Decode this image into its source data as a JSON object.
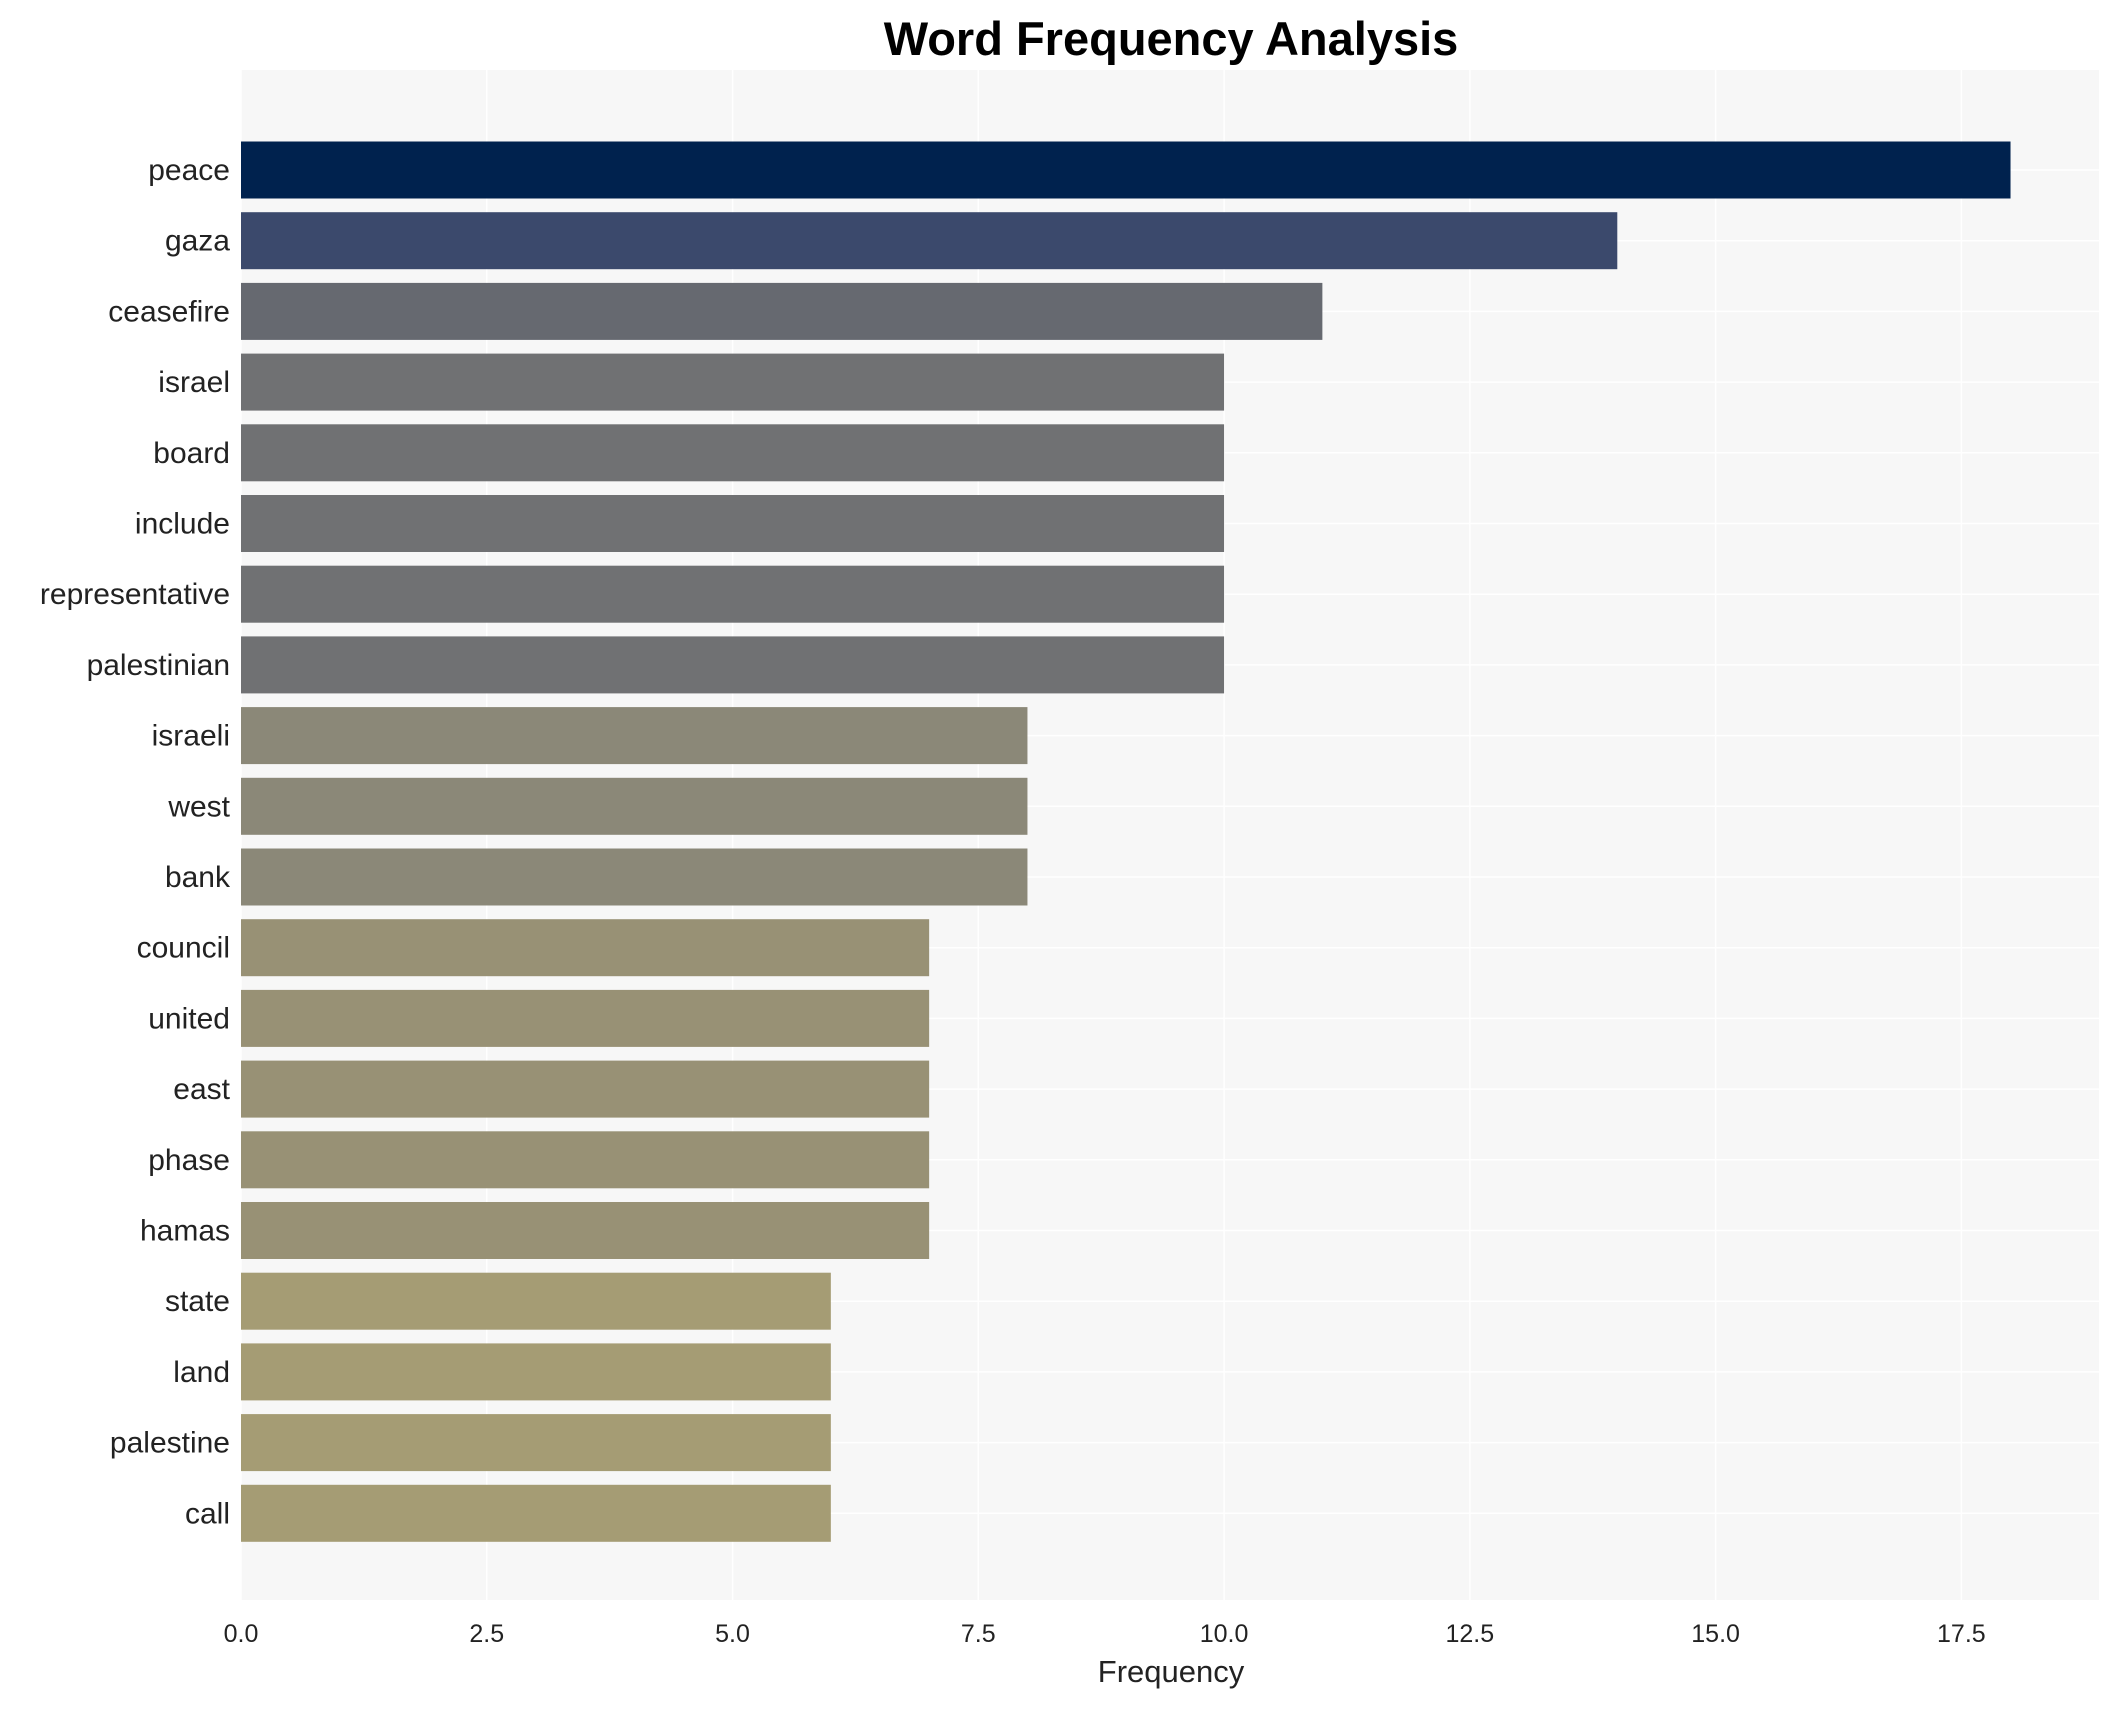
{
  "chart_data": {
    "type": "bar",
    "orientation": "horizontal",
    "title": "Word Frequency Analysis",
    "xlabel": "Frequency",
    "ylabel": "",
    "xlim": [
      0,
      18.9
    ],
    "xticks": [
      "0.0",
      "2.5",
      "5.0",
      "7.5",
      "10.0",
      "12.5",
      "15.0",
      "17.5"
    ],
    "grid": true,
    "categories": [
      "peace",
      "gaza",
      "ceasefire",
      "israel",
      "board",
      "include",
      "representative",
      "palestinian",
      "israeli",
      "west",
      "bank",
      "council",
      "united",
      "east",
      "phase",
      "hamas",
      "state",
      "land",
      "palestine",
      "call"
    ],
    "values": [
      18,
      14,
      11,
      10,
      10,
      10,
      10,
      10,
      8,
      8,
      8,
      7,
      7,
      7,
      7,
      7,
      6,
      6,
      6,
      6
    ],
    "colors": [
      "#00224e",
      "#3b496c",
      "#666970",
      "#707173",
      "#707173",
      "#707173",
      "#707173",
      "#707173",
      "#8b8878",
      "#8b8878",
      "#8b8878",
      "#989175",
      "#989175",
      "#989175",
      "#989175",
      "#989175",
      "#a59c74",
      "#a59c74",
      "#a59c74",
      "#a59c74"
    ]
  }
}
